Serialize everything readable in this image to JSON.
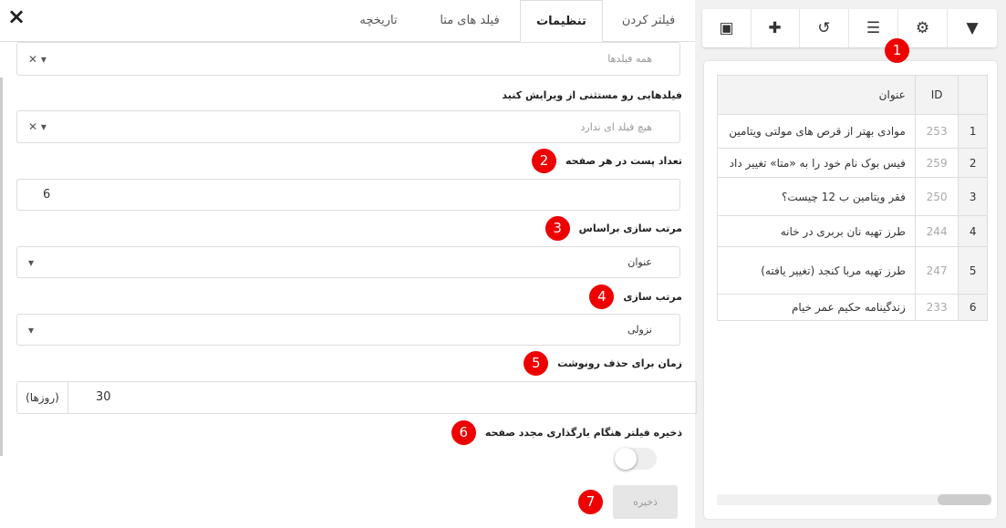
{
  "tabs": [
    {
      "label": "فیلتر کردن"
    },
    {
      "label": "تنظیمات"
    },
    {
      "label": "فیلد های متا"
    },
    {
      "label": "تاریخچه"
    }
  ],
  "close_icon": "×",
  "settings": {
    "fields_placeholder": "همه فیلدها",
    "exclude_label": "فیلدهایی رو مستثنی از ویرایش کنید",
    "exclude_placeholder": "هیچ فیلد ای ندارد",
    "per_page_label": "تعداد پست در هر صفحه",
    "per_page_value": "6",
    "order_by_label": "مرتب سازی براساس",
    "order_by_value": "عنوان",
    "order_label": "مرتب سازی",
    "order_value": "نزولی",
    "revision_label": "زمان برای حذف رونوشت",
    "revision_value": "30",
    "revision_suffix": "(روزها)",
    "save_filter_label": "ذخیره فیلتر هنگام بارگذاری مجدد صفحه",
    "save_filter_on": false,
    "save_button": "ذخیره"
  },
  "badges": [
    "1",
    "2",
    "3",
    "4",
    "5",
    "6",
    "7"
  ],
  "toolbar": [
    "filter-icon",
    "gear-icon",
    "columns-icon",
    "history-icon",
    "plus-icon",
    "save-icon"
  ],
  "table": {
    "headers": [
      "",
      "ID",
      "عنوان"
    ],
    "rows": [
      [
        "1",
        "253",
        "موادی بهتر از قرص های مولتی ویتامین"
      ],
      [
        "2",
        "259",
        "فیس بوک نام خود را به «متا» تغییر داد"
      ],
      [
        "3",
        "250",
        "فقر ویتامین ب 12 چیست؟"
      ],
      [
        "4",
        "244",
        "طرز تهیه نان بربری در خانه"
      ],
      [
        "5",
        "247",
        "طرز تهیه مربا کنجد (تغییر یافته)"
      ],
      [
        "6",
        "233",
        "زندگینامه حکیم عمر خیام"
      ]
    ]
  }
}
